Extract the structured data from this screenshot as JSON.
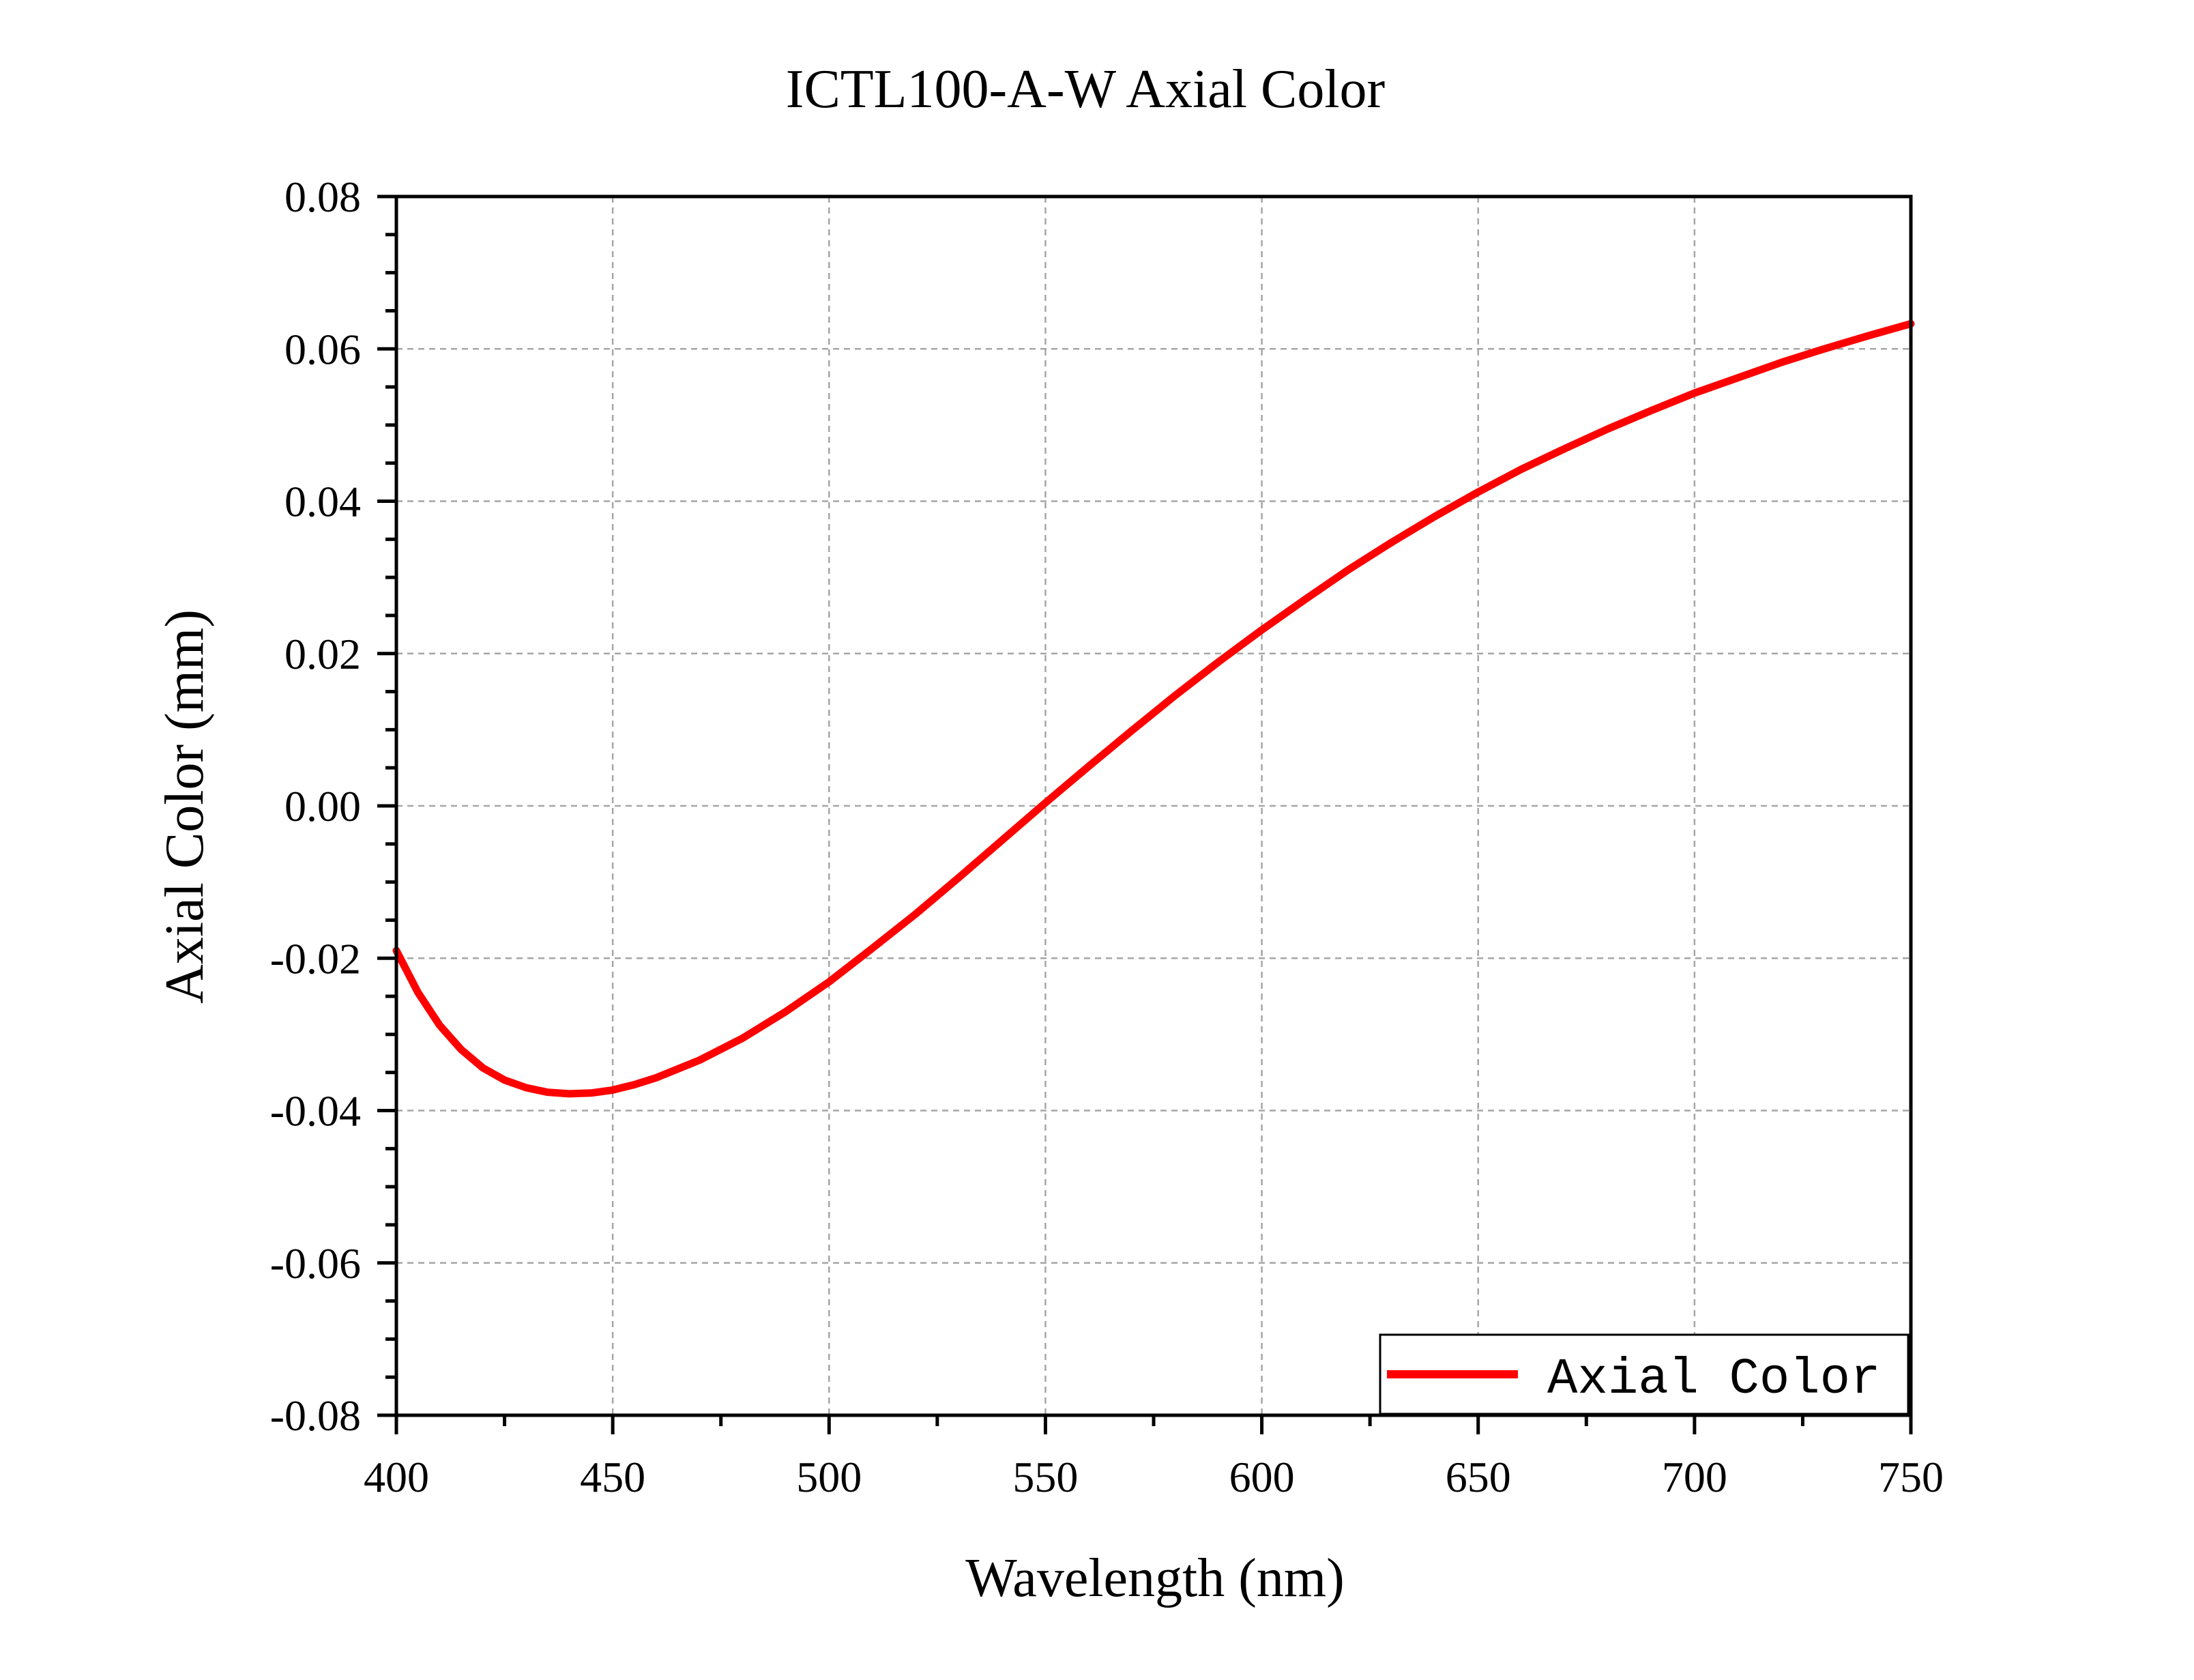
{
  "chart_data": {
    "type": "line",
    "title": "ICTL100-A-W Axial Color",
    "xlabel": "Wavelength (nm)",
    "ylabel": "Axial Color (mm)",
    "xlim": [
      400,
      750
    ],
    "ylim": [
      -0.08,
      0.08
    ],
    "xticks": [
      "400",
      "450",
      "500",
      "550",
      "600",
      "650",
      "700",
      "750"
    ],
    "yticks": [
      "0.08",
      "0.06",
      "0.04",
      "0.02",
      "0.00",
      "-0.02",
      "-0.04",
      "-0.06",
      "-0.08"
    ],
    "grid": true,
    "legend_position": "bottom-right",
    "series": [
      {
        "name": "Axial Color",
        "color": "#ff0000",
        "x": [
          400,
          405,
          410,
          415,
          420,
          425,
          430,
          435,
          440,
          445,
          450,
          455,
          460,
          470,
          480,
          490,
          500,
          510,
          520,
          530,
          540,
          550,
          560,
          570,
          580,
          590,
          600,
          610,
          620,
          630,
          640,
          650,
          660,
          670,
          680,
          690,
          700,
          710,
          720,
          730,
          740,
          750
        ],
        "y": [
          -0.019,
          -0.0245,
          -0.0288,
          -0.032,
          -0.0344,
          -0.036,
          -0.037,
          -0.0376,
          -0.0378,
          -0.0377,
          -0.0373,
          -0.0366,
          -0.0357,
          -0.0334,
          -0.0305,
          -0.027,
          -0.0231,
          -0.0187,
          -0.0142,
          -0.0094,
          -0.0045,
          0.0004,
          0.0052,
          0.0099,
          0.0145,
          0.0189,
          0.0231,
          0.0271,
          0.031,
          0.0346,
          0.038,
          0.0412,
          0.0442,
          0.0469,
          0.0495,
          0.0519,
          0.0542,
          0.0562,
          0.0582,
          0.06,
          0.0617,
          0.0633
        ]
      }
    ]
  }
}
